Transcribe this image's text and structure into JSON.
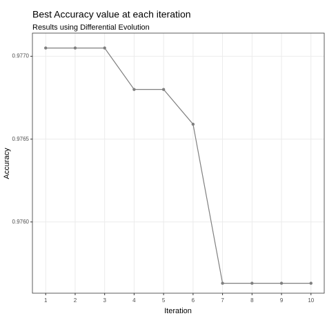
{
  "chart_data": {
    "type": "line",
    "title": "Best Accuracy value at each iteration",
    "subtitle": "Results using Differential Evolution",
    "x_label": "Iteration",
    "y_label": "Accuracy",
    "x": [
      1,
      2,
      3,
      4,
      5,
      6,
      7,
      8,
      9,
      10
    ],
    "series": [
      {
        "color": "#7f7f7f",
        "values": [
          0.97705,
          0.97705,
          0.97705,
          0.9768,
          0.9768,
          0.97659,
          0.97563,
          0.97563,
          0.97563,
          0.97563
        ]
      }
    ],
    "xlim": [
      0.55,
      10.45
    ],
    "xticks": [
      1,
      2,
      3,
      4,
      5,
      6,
      7,
      8,
      9,
      10
    ],
    "ylim": [
      0.97557,
      0.97714
    ],
    "yticks": [
      {
        "value": 0.976,
        "label": "0.9760"
      },
      {
        "value": 0.9765,
        "label": "0.9765"
      },
      {
        "value": 0.977,
        "label": "0.9770"
      }
    ],
    "grid": true
  }
}
